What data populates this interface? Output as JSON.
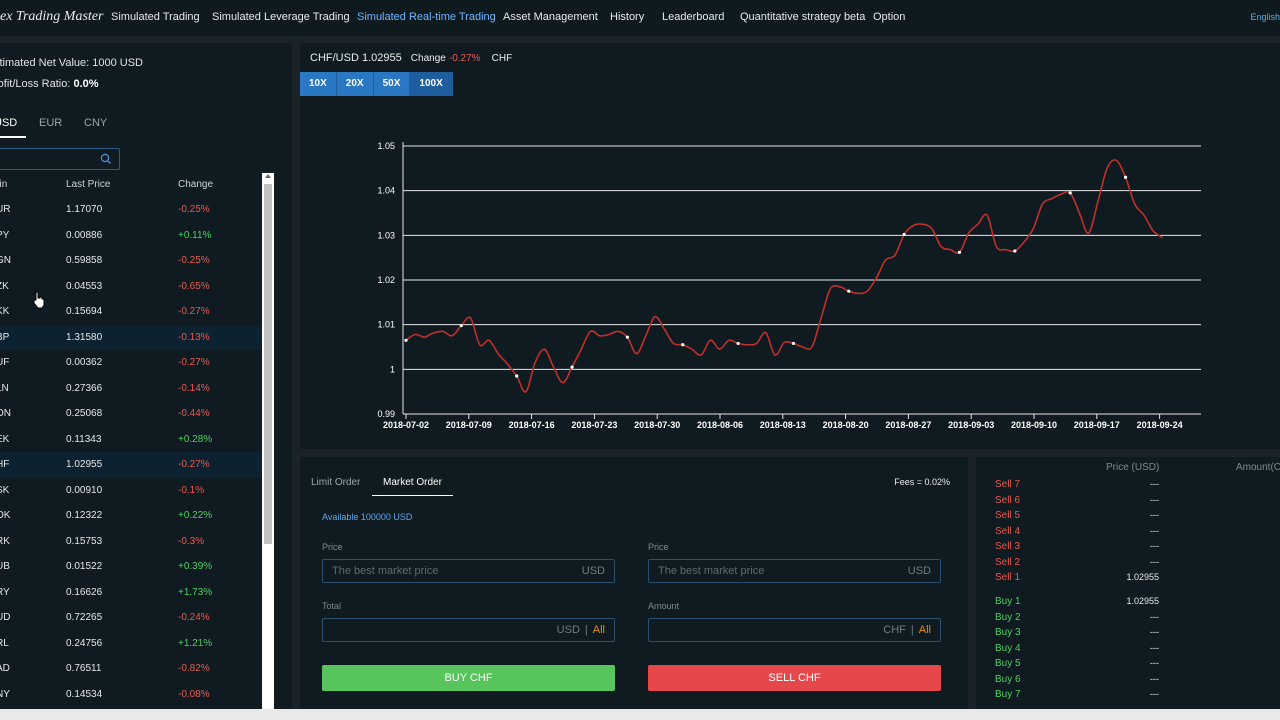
{
  "header": {
    "brand": "ex Trading Master",
    "nav": [
      {
        "label": "Simulated Trading",
        "active": false
      },
      {
        "label": "Simulated Leverage Trading",
        "active": false
      },
      {
        "label": "Simulated Real-time Trading",
        "active": true
      },
      {
        "label": "Asset Management",
        "active": false
      },
      {
        "label": "History",
        "active": false
      },
      {
        "label": "Leaderboard",
        "active": false
      },
      {
        "label": "Quantitative strategy beta",
        "active": false
      },
      {
        "label": "Option",
        "active": false
      }
    ],
    "language": "English"
  },
  "account": {
    "net_value_label": "stimated Net Value:",
    "net_value": "1000 USD",
    "pl_label": "rofit/Loss Ratio:",
    "pl_value": "0.0%"
  },
  "currency_tabs": [
    "USD",
    "EUR",
    "CNY"
  ],
  "market": {
    "search_placeholder": "",
    "columns": [
      "oin",
      "Last Price",
      "Change"
    ],
    "rows": [
      {
        "symbol": "UR",
        "price": "1.17070",
        "change": "-0.25%"
      },
      {
        "symbol": "PY",
        "price": "0.00886",
        "change": "+0.11%"
      },
      {
        "symbol": "GN",
        "price": "0.59858",
        "change": "-0.25%"
      },
      {
        "symbol": "ZK",
        "price": "0.04553",
        "change": "-0.65%"
      },
      {
        "symbol": "KK",
        "price": "0.15694",
        "change": "-0.27%"
      },
      {
        "symbol": "BP",
        "price": "1.31580",
        "change": "-0.13%"
      },
      {
        "symbol": "UF",
        "price": "0.00362",
        "change": "-0.27%"
      },
      {
        "symbol": "LN",
        "price": "0.27366",
        "change": "-0.14%"
      },
      {
        "symbol": "ON",
        "price": "0.25068",
        "change": "-0.44%"
      },
      {
        "symbol": "EK",
        "price": "0.11343",
        "change": "+0.28%"
      },
      {
        "symbol": "HF",
        "price": "1.02955",
        "change": "-0.27%"
      },
      {
        "symbol": "SK",
        "price": "0.00910",
        "change": "-0.1%"
      },
      {
        "symbol": "OK",
        "price": "0.12322",
        "change": "+0.22%"
      },
      {
        "symbol": "RK",
        "price": "0.15753",
        "change": "-0.3%"
      },
      {
        "symbol": "UB",
        "price": "0.01522",
        "change": "+0.39%"
      },
      {
        "symbol": "RY",
        "price": "0.16626",
        "change": "+1.73%"
      },
      {
        "symbol": "UD",
        "price": "0.72265",
        "change": "-0.24%"
      },
      {
        "symbol": "RL",
        "price": "0.24756",
        "change": "+1.21%"
      },
      {
        "symbol": "AD",
        "price": "0.76511",
        "change": "-0.82%"
      },
      {
        "symbol": "NY",
        "price": "0.14534",
        "change": "-0.08%"
      }
    ]
  },
  "ticker": {
    "pair": "CHF/USD",
    "price": "1.02955",
    "change_label": "Change",
    "change": "-0.27%",
    "currency": "CHF"
  },
  "leverage": [
    "10X",
    "20X",
    "50X",
    "100X"
  ],
  "chart_data": {
    "type": "line",
    "x_labels": [
      "2018-07-02",
      "2018-07-09",
      "2018-07-16",
      "2018-07-23",
      "2018-07-30",
      "2018-08-06",
      "2018-08-13",
      "2018-08-20",
      "2018-08-27",
      "2018-09-03",
      "2018-09-10",
      "2018-09-17",
      "2018-09-24"
    ],
    "y_ticks": [
      "0.99",
      "1",
      "1.01",
      "1.02",
      "1.03",
      "1.04",
      "1.05"
    ],
    "ylim": [
      0.99,
      1.05
    ],
    "series": [
      {
        "color": "#c0302a",
        "values": [
          [
            0,
            1.0065
          ],
          [
            0.5,
            1.0078
          ],
          [
            1.0,
            1.0072
          ],
          [
            1.4,
            1.008
          ],
          [
            2.0,
            1.0085
          ],
          [
            2.5,
            1.0075
          ],
          [
            3.0,
            1.0098
          ],
          [
            3.5,
            1.0115
          ],
          [
            4.0,
            1.0055
          ],
          [
            4.5,
            1.0065
          ],
          [
            5.0,
            1.0035
          ],
          [
            5.5,
            1.0012
          ],
          [
            6.0,
            0.9985
          ],
          [
            6.5,
            0.995
          ],
          [
            7.0,
            1.0015
          ],
          [
            7.5,
            1.0045
          ],
          [
            8.0,
            1.0005
          ],
          [
            8.5,
            0.997
          ],
          [
            9.0,
            1.0005
          ],
          [
            9.5,
            1.0045
          ],
          [
            10.0,
            1.0085
          ],
          [
            10.5,
            1.0075
          ],
          [
            11.0,
            1.0078
          ],
          [
            11.5,
            1.0085
          ],
          [
            12.0,
            1.0072
          ],
          [
            12.5,
            1.0035
          ],
          [
            13.0,
            1.0075
          ],
          [
            13.5,
            1.0118
          ],
          [
            14.0,
            1.009
          ],
          [
            14.5,
            1.0058
          ],
          [
            15.0,
            1.0055
          ],
          [
            15.5,
            1.0045
          ],
          [
            16.0,
            1.0032
          ],
          [
            16.5,
            1.0065
          ],
          [
            17.0,
            1.0045
          ],
          [
            17.5,
            1.0065
          ],
          [
            18.0,
            1.0058
          ],
          [
            18.5,
            1.0055
          ],
          [
            19.0,
            1.0058
          ],
          [
            19.5,
            1.0082
          ],
          [
            20.0,
            1.0032
          ],
          [
            20.5,
            1.006
          ],
          [
            21.0,
            1.0058
          ],
          [
            21.5,
            1.005
          ],
          [
            22.0,
            1.005
          ],
          [
            22.5,
            1.0115
          ],
          [
            23.0,
            1.018
          ],
          [
            23.5,
            1.0185
          ],
          [
            24.0,
            1.0175
          ],
          [
            24.5,
            1.017
          ],
          [
            25.0,
            1.0175
          ],
          [
            25.5,
            1.0205
          ],
          [
            26.0,
            1.0245
          ],
          [
            26.5,
            1.0255
          ],
          [
            27.0,
            1.0302
          ],
          [
            27.5,
            1.0322
          ],
          [
            28.0,
            1.0325
          ],
          [
            28.5,
            1.0315
          ],
          [
            29.0,
            1.0275
          ],
          [
            29.5,
            1.0268
          ],
          [
            30.0,
            1.0262
          ],
          [
            30.5,
            1.0305
          ],
          [
            31.0,
            1.0325
          ],
          [
            31.5,
            1.0345
          ],
          [
            32.0,
            1.0275
          ],
          [
            32.5,
            1.0268
          ],
          [
            33.0,
            1.0265
          ],
          [
            33.5,
            1.0285
          ],
          [
            34.0,
            1.0315
          ],
          [
            34.5,
            1.037
          ],
          [
            35.0,
            1.0382
          ],
          [
            35.5,
            1.0392
          ],
          [
            36.0,
            1.0395
          ],
          [
            36.5,
            1.035
          ],
          [
            37.0,
            1.0305
          ],
          [
            37.5,
            1.0375
          ],
          [
            38.0,
            1.045
          ],
          [
            38.5,
            1.0468
          ],
          [
            39.0,
            1.043
          ],
          [
            39.5,
            1.037
          ],
          [
            40.0,
            1.0345
          ],
          [
            40.5,
            1.031
          ],
          [
            41.0,
            1.0295
          ]
        ],
        "markers": [
          0,
          6,
          12,
          18,
          24,
          30,
          36,
          42,
          48,
          54,
          60,
          66,
          72,
          78
        ]
      }
    ]
  },
  "order": {
    "tabs": [
      "Limit Order",
      "Market Order"
    ],
    "fees": "Fees = 0.02%",
    "available": "Available 100000 USD",
    "buy": {
      "price_label": "Price",
      "price_placeholder": "The best market price",
      "price_unit": "USD",
      "total_label": "Total",
      "total_unit": "USD",
      "all": "All",
      "button": "BUY CHF",
      "color": "#57c45c"
    },
    "sell": {
      "price_label": "Price",
      "price_placeholder": "The best market price",
      "price_unit": "USD",
      "amount_label": "Amount",
      "amount_unit": "CHF",
      "all": "All",
      "button": "SELL CHF",
      "color": "#e5484a"
    }
  },
  "orderbook": {
    "price_header": "Price (USD)",
    "amount_header": "Amount(C",
    "sells": [
      {
        "label": "Sell 7",
        "price": "---"
      },
      {
        "label": "Sell 6",
        "price": "---"
      },
      {
        "label": "Sell 5",
        "price": "---"
      },
      {
        "label": "Sell 4",
        "price": "---"
      },
      {
        "label": "Sell 3",
        "price": "---"
      },
      {
        "label": "Sell 2",
        "price": "---"
      },
      {
        "label": "Sell 1",
        "price": "1.02955"
      }
    ],
    "buys": [
      {
        "label": "Buy 1",
        "price": "1.02955"
      },
      {
        "label": "Buy 2",
        "price": "---"
      },
      {
        "label": "Buy 3",
        "price": "---"
      },
      {
        "label": "Buy 4",
        "price": "---"
      },
      {
        "label": "Buy 5",
        "price": "---"
      },
      {
        "label": "Buy 6",
        "price": "---"
      },
      {
        "label": "Buy 7",
        "price": "---"
      }
    ]
  }
}
